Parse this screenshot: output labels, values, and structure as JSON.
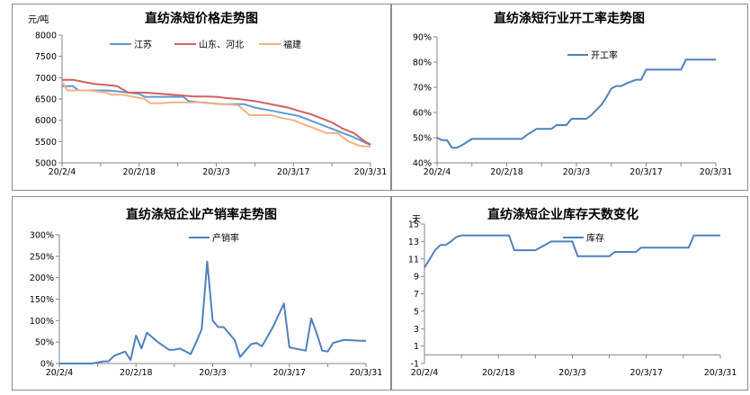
{
  "colors": {
    "blue": "#5B9BD5",
    "red": "#D0605E",
    "orange": "#F4B183",
    "line": "#4F81BD",
    "axis": "#868686"
  },
  "chart_data": [
    {
      "type": "line",
      "title": "直纺涤短价格走势图",
      "ylabel": "元/吨",
      "ylim": [
        5000,
        8000
      ],
      "yticks": [
        "5000",
        "5500",
        "6000",
        "6500",
        "7000",
        "7500",
        "8000"
      ],
      "xlim": [
        0,
        56
      ],
      "xticks": [
        {
          "pos": 0,
          "label": "20/2/4"
        },
        {
          "pos": 14,
          "label": "20/2/18"
        },
        {
          "pos": 28,
          "label": "20/3/3"
        },
        {
          "pos": 42,
          "label": "20/3/17"
        },
        {
          "pos": 56,
          "label": "20/3/31"
        }
      ],
      "legend": "top",
      "series": [
        {
          "name": "江苏",
          "color": "blue",
          "x": [
            0,
            2,
            3,
            5,
            8,
            10,
            12,
            14,
            15,
            17,
            20,
            22,
            23,
            25,
            27,
            29,
            31,
            33,
            35,
            37,
            39,
            41,
            43,
            45,
            47,
            49,
            51,
            53,
            55,
            56
          ],
          "y": [
            6800,
            6800,
            6700,
            6700,
            6700,
            6680,
            6650,
            6620,
            6550,
            6550,
            6550,
            6550,
            6450,
            6420,
            6400,
            6380,
            6380,
            6380,
            6300,
            6250,
            6200,
            6150,
            6100,
            6000,
            5900,
            5800,
            5700,
            5600,
            5480,
            5420
          ]
        },
        {
          "name": "山东、河北",
          "color": "red",
          "x": [
            0,
            2,
            4,
            6,
            8,
            10,
            12,
            15,
            18,
            20,
            22,
            24,
            26,
            28,
            30,
            32,
            35,
            37,
            39,
            41,
            43,
            45,
            47,
            49,
            51,
            53,
            55,
            56
          ],
          "y": [
            6950,
            6950,
            6900,
            6850,
            6830,
            6800,
            6650,
            6650,
            6620,
            6600,
            6580,
            6560,
            6560,
            6550,
            6520,
            6500,
            6450,
            6400,
            6350,
            6300,
            6220,
            6150,
            6050,
            5950,
            5800,
            5700,
            5500,
            5430
          ]
        },
        {
          "name": "福建",
          "color": "orange",
          "x": [
            0,
            1,
            3,
            5,
            8,
            9,
            11,
            13,
            15,
            16,
            18,
            20,
            22,
            24,
            26,
            28,
            30,
            32,
            34,
            36,
            38,
            40,
            42,
            44,
            46,
            48,
            50,
            52,
            54,
            56
          ],
          "y": [
            6900,
            6700,
            6700,
            6700,
            6650,
            6600,
            6600,
            6550,
            6500,
            6400,
            6400,
            6420,
            6420,
            6420,
            6420,
            6380,
            6380,
            6350,
            6120,
            6120,
            6120,
            6050,
            6000,
            5900,
            5800,
            5700,
            5700,
            5500,
            5400,
            5380
          ]
        }
      ]
    },
    {
      "type": "line",
      "title": "直纺涤短行业开工率走势图",
      "ylim": [
        40,
        90
      ],
      "yticks": [
        "40%",
        "50%",
        "60%",
        "70%",
        "80%",
        "90%"
      ],
      "xlim": [
        0,
        56
      ],
      "xticks": [
        {
          "pos": 0,
          "label": "20/2/4"
        },
        {
          "pos": 14,
          "label": "20/2/18"
        },
        {
          "pos": 28,
          "label": "20/3/3"
        },
        {
          "pos": 42,
          "label": "20/3/17"
        },
        {
          "pos": 56,
          "label": "20/3/31"
        }
      ],
      "legend": "top-right",
      "series": [
        {
          "name": "开工率",
          "color": "line",
          "x": [
            0,
            1,
            2,
            3,
            4,
            5,
            7,
            10,
            15,
            17,
            18,
            20,
            21,
            23,
            24,
            26,
            27,
            30,
            31,
            33,
            34,
            35,
            36,
            37,
            38,
            40,
            41,
            42,
            43,
            49,
            50,
            56
          ],
          "y": [
            50,
            49,
            49,
            46,
            46,
            47,
            49.5,
            49.5,
            49.5,
            49.5,
            51,
            53.5,
            53.5,
            53.5,
            55,
            55,
            57.5,
            57.5,
            59,
            63,
            66,
            69.5,
            70.5,
            70.5,
            71.5,
            73,
            73,
            77,
            77,
            77,
            81,
            81
          ]
        }
      ]
    },
    {
      "type": "line",
      "title": "直纺涤短企业产销率走势图",
      "ylim": [
        0,
        300
      ],
      "yticks": [
        "0%",
        "50%",
        "100%",
        "150%",
        "200%",
        "250%",
        "300%"
      ],
      "xlim": [
        0,
        56
      ],
      "xticks": [
        {
          "pos": 0,
          "label": "20/2/4"
        },
        {
          "pos": 14,
          "label": "20/2/18"
        },
        {
          "pos": 28,
          "label": "20/3/3"
        },
        {
          "pos": 42,
          "label": "20/3/17"
        },
        {
          "pos": 56,
          "label": "20/3/31"
        }
      ],
      "legend": "top-center",
      "series": [
        {
          "name": "产销率",
          "color": "line",
          "x": [
            0,
            6,
            8,
            9,
            10,
            12,
            13,
            14,
            15,
            16,
            18,
            20,
            21,
            22,
            24,
            25,
            26,
            27,
            28,
            29,
            30,
            31,
            32,
            33,
            35,
            36,
            37,
            39,
            41,
            42,
            43,
            45,
            46,
            47,
            48,
            49,
            50,
            52,
            55,
            56
          ],
          "y": [
            0,
            0,
            5,
            5,
            18,
            28,
            8,
            65,
            35,
            72,
            50,
            32,
            32,
            35,
            22,
            50,
            80,
            238,
            100,
            85,
            85,
            70,
            55,
            15,
            45,
            48,
            40,
            85,
            140,
            38,
            35,
            30,
            105,
            70,
            30,
            28,
            48,
            55,
            53,
            53
          ]
        }
      ]
    },
    {
      "type": "line",
      "title": "直纺涤短企业库存天数变化",
      "ylabel": "天",
      "ylim": [
        -1,
        15
      ],
      "yticks": [
        "-1",
        "1",
        "3",
        "5",
        "7",
        "9",
        "11",
        "13",
        "15"
      ],
      "xlim": [
        0,
        56
      ],
      "xticks": [
        {
          "pos": 0,
          "label": "20/2/4"
        },
        {
          "pos": 14,
          "label": "20/2/18"
        },
        {
          "pos": 28,
          "label": "20/3/3"
        },
        {
          "pos": 42,
          "label": "20/3/17"
        },
        {
          "pos": 56,
          "label": "20/3/31"
        }
      ],
      "legend": "top-center",
      "series": [
        {
          "name": "库存",
          "color": "line",
          "x": [
            0,
            1,
            2,
            3,
            4,
            5,
            6,
            7,
            8,
            10,
            12,
            14,
            16,
            17,
            18,
            20,
            21,
            24,
            26,
            27,
            28,
            29,
            30,
            32,
            35,
            36,
            40,
            41,
            45,
            46,
            50,
            51,
            56
          ],
          "y": [
            10,
            11,
            12,
            12.6,
            12.6,
            13,
            13.5,
            13.7,
            13.7,
            13.7,
            13.7,
            13.7,
            13.7,
            12,
            12,
            12,
            12,
            13,
            13,
            13,
            13,
            11.3,
            11.3,
            11.3,
            11.3,
            11.8,
            11.8,
            12.3,
            12.3,
            12.3,
            12.3,
            13.7,
            13.7
          ]
        }
      ]
    }
  ]
}
